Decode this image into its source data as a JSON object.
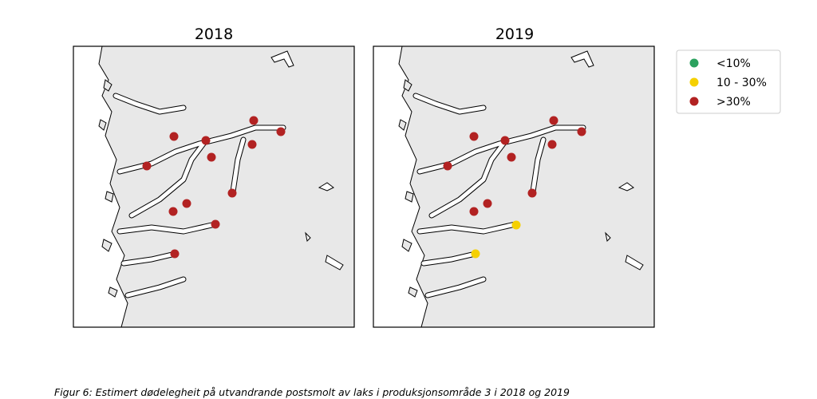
{
  "panels": [
    {
      "title": "2018"
    },
    {
      "title": "2019"
    }
  ],
  "legend": {
    "items": [
      {
        "label": "<10%",
        "color": "#2ca25f"
      },
      {
        "label": "10 - 30%",
        "color": "#f5d000"
      },
      {
        "label": ">30%",
        "color": "#b22222"
      }
    ]
  },
  "caption": "Figur 6: Estimert dødelegheit på utvandrande postsmolt av laks i produksjonsområde 3 i 2018 og 2019"
}
